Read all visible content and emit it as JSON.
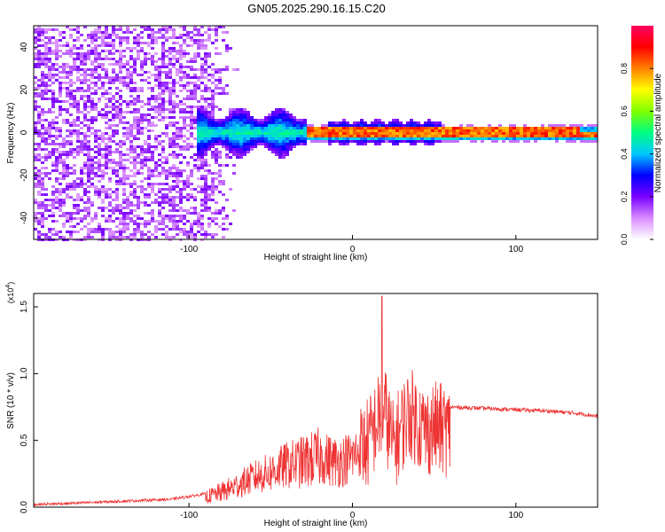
{
  "title": "GN05.2025.290.16.15.C20",
  "chart_data": [
    {
      "type": "heatmap",
      "xlabel": "Height of straight line (km)",
      "ylabel": "Frequency (Hz)",
      "xlim": [
        -195,
        150
      ],
      "ylim": [
        -50,
        50
      ],
      "xticks": [
        -100,
        0,
        100
      ],
      "yticks": [
        -40,
        -20,
        0,
        20,
        40
      ],
      "colorbar": {
        "label": "Normalized spectral amplitude",
        "range": [
          0,
          1
        ],
        "ticks": [
          "0.0",
          "0.2",
          "0.4",
          "0.6",
          "0.8"
        ],
        "tick_values": [
          0,
          0.2,
          0.4,
          0.6,
          0.8
        ],
        "colors": [
          "#ffffff",
          "#d98cff",
          "#7a00ff",
          "#0000ff",
          "#00c8ff",
          "#00ff80",
          "#80ff00",
          "#ffff00",
          "#ff8000",
          "#ff0000",
          "#ff0060"
        ]
      },
      "regions": [
        {
          "name": "noise",
          "x": [
            -195,
            -70
          ],
          "f": [
            -50,
            50
          ],
          "amplitude": 0.15
        },
        {
          "name": "onset",
          "x": [
            -95,
            -28
          ],
          "f": [
            -10,
            10
          ],
          "amplitude": 0.35
        },
        {
          "name": "carrier",
          "x": [
            -28,
            150
          ],
          "f": [
            -1,
            1
          ],
          "amplitude": 0.85
        }
      ]
    },
    {
      "type": "line",
      "xlabel": "Height of straight line (km)",
      "ylabel": "SNR (10 * v/v)",
      "multiplier_label": "(x10",
      "multiplier_exp": "4",
      "xlim": [
        -195,
        150
      ],
      "ylim": [
        0,
        1.6
      ],
      "xticks": [
        -100,
        0,
        100
      ],
      "yticks": [
        "0.0",
        "0.5",
        "1.0",
        "1.5"
      ],
      "ytick_values": [
        0,
        0.5,
        1.0,
        1.5
      ],
      "color": "#ee3333",
      "x": [
        -195,
        -170,
        -150,
        -130,
        -110,
        -100,
        -90,
        -80,
        -70,
        -60,
        -50,
        -40,
        -30,
        -20,
        -10,
        0,
        10,
        15,
        20,
        25,
        30,
        35,
        40,
        45,
        50,
        55,
        60,
        80,
        100,
        120,
        140,
        150
      ],
      "y": [
        0.02,
        0.03,
        0.04,
        0.05,
        0.06,
        0.08,
        0.1,
        0.15,
        0.22,
        0.3,
        0.35,
        0.42,
        0.45,
        0.5,
        0.45,
        0.5,
        0.65,
        0.85,
        0.95,
        0.6,
        0.8,
        0.95,
        0.85,
        0.75,
        0.8,
        0.78,
        0.75,
        0.74,
        0.73,
        0.72,
        0.7,
        0.68
      ],
      "peak_x": 18,
      "peak_y": 1.58
    }
  ]
}
